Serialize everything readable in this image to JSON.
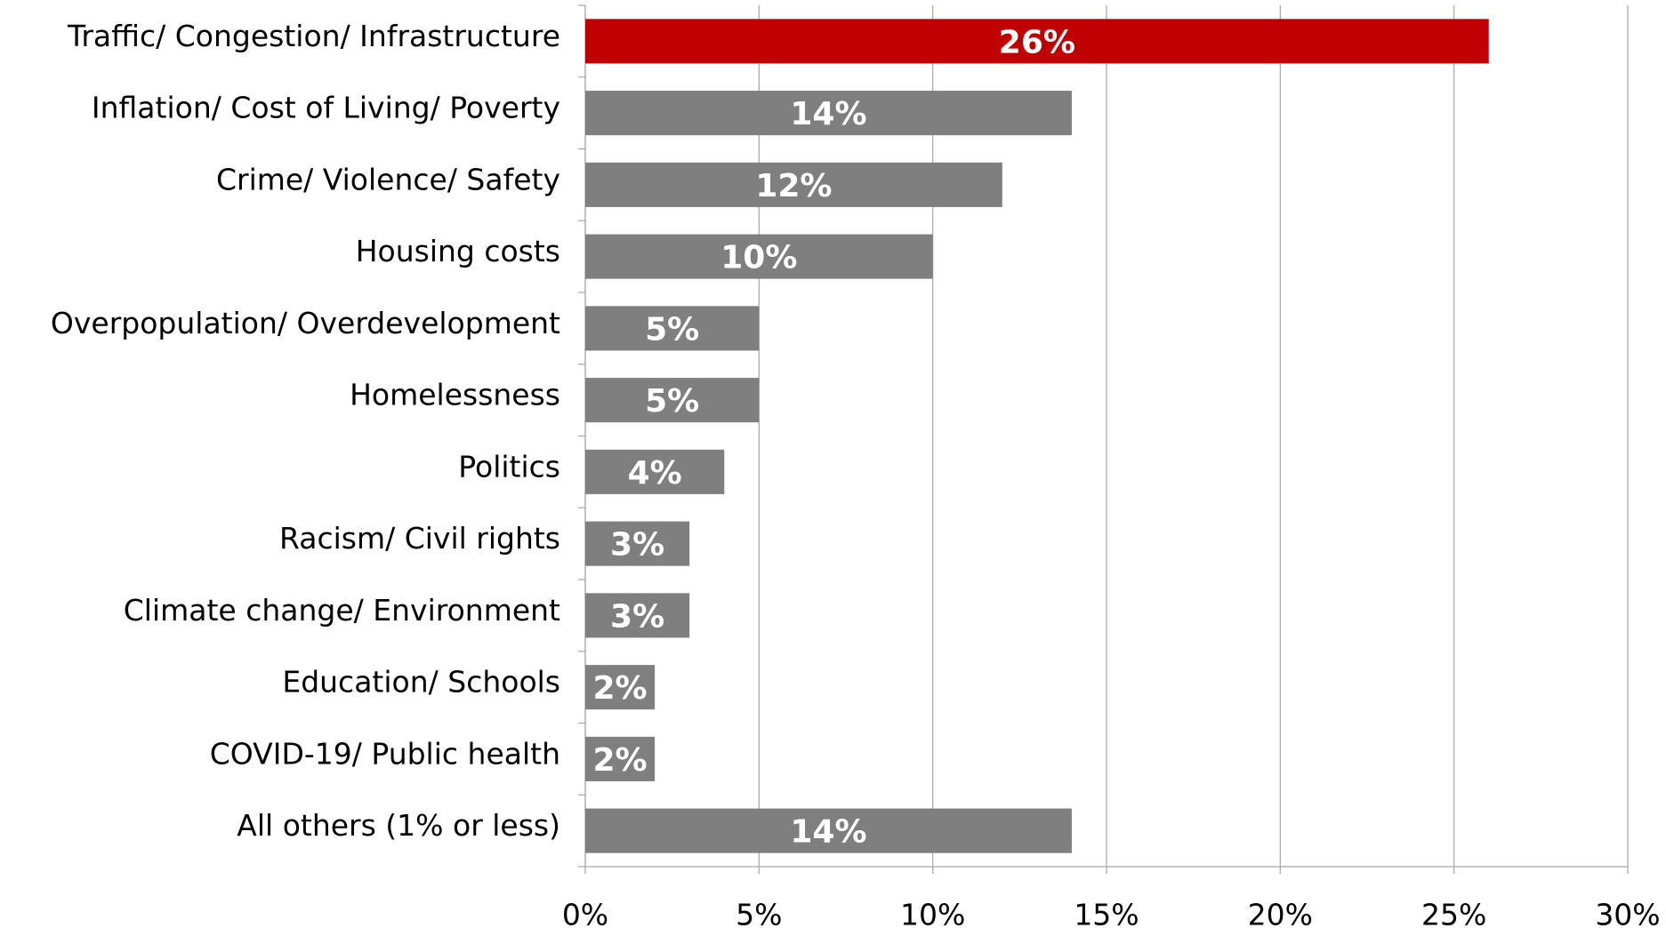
{
  "chart_data": {
    "type": "barh",
    "categories": [
      "Traffic/ Congestion/ Infrastructure",
      "Inflation/ Cost of Living/ Poverty",
      "Crime/ Violence/ Safety",
      "Housing costs",
      "Overpopulation/ Overdevelopment",
      "Homelessness",
      "Politics",
      "Racism/ Civil rights",
      "Climate change/ Environment",
      "Education/ Schools",
      "COVID-19/ Public health",
      "All others (1% or less)"
    ],
    "values": [
      26,
      14,
      12,
      10,
      5,
      5,
      4,
      3,
      3,
      2,
      2,
      14
    ],
    "value_labels": [
      "26%",
      "14%",
      "12%",
      "10%",
      "5%",
      "5%",
      "4%",
      "3%",
      "3%",
      "2%",
      "2%",
      "14%"
    ],
    "colors": [
      "#c00000",
      "#7f7f7f",
      "#7f7f7f",
      "#7f7f7f",
      "#7f7f7f",
      "#7f7f7f",
      "#7f7f7f",
      "#7f7f7f",
      "#7f7f7f",
      "#7f7f7f",
      "#7f7f7f",
      "#7f7f7f"
    ],
    "xlim": [
      0,
      30
    ],
    "xticks": [
      {
        "value": 0,
        "label": "0%"
      },
      {
        "value": 5,
        "label": "5%"
      },
      {
        "value": 10,
        "label": "10%"
      },
      {
        "value": 15,
        "label": "15%"
      },
      {
        "value": 20,
        "label": "20%"
      },
      {
        "value": 25,
        "label": "25%"
      },
      {
        "value": 30,
        "label": "30%"
      }
    ],
    "grid": true
  }
}
